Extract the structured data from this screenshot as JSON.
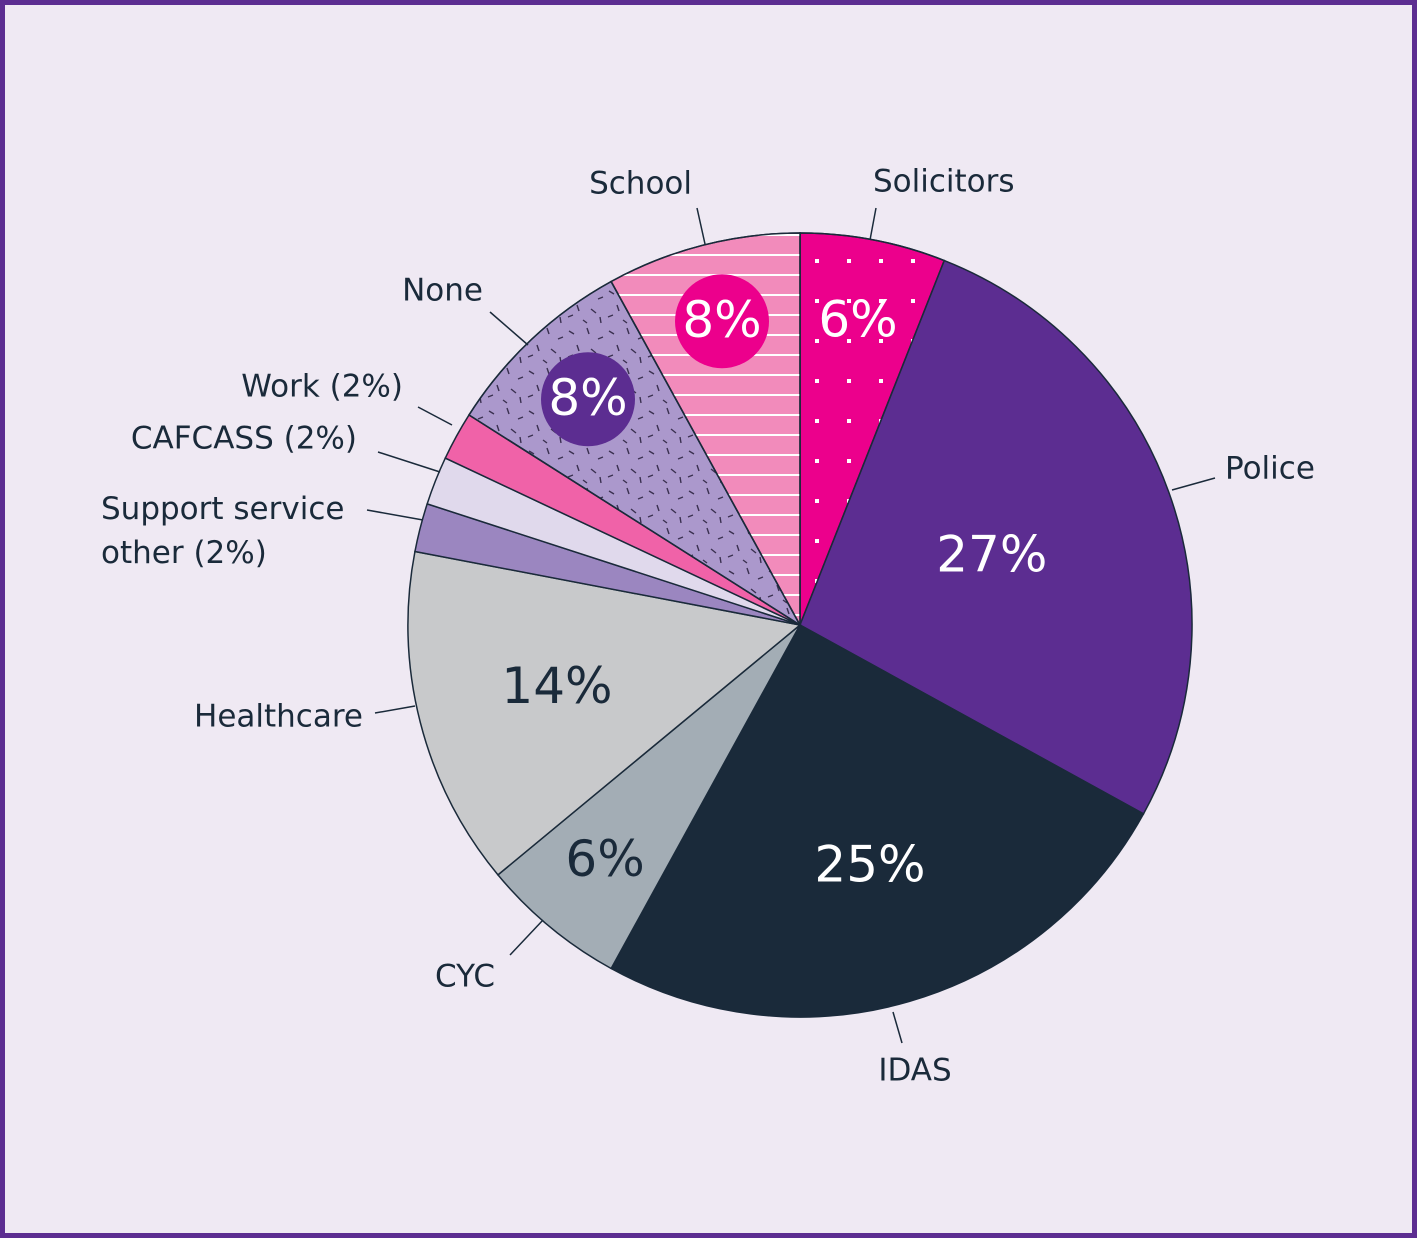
{
  "chart_data": {
    "type": "pie",
    "categories": [
      "Solicitors",
      "Police",
      "IDAS",
      "CYC",
      "Healthcare",
      "Support service other (2%)",
      "CAFCASS (2%)",
      "Work (2%)",
      "None",
      "School"
    ],
    "values": [
      6,
      27,
      25,
      6,
      14,
      2,
      2,
      2,
      8,
      8
    ],
    "value_labels": [
      "6%",
      "27%",
      "25%",
      "6%",
      "14%",
      null,
      null,
      null,
      "8%",
      "8%"
    ],
    "colors": [
      "#ec008c",
      "#5c2d91",
      "#1a2a3a",
      "#a3adb5",
      "#c8c9cb",
      "#9b86c0",
      "#e0d9ec",
      "#f062a8",
      "#ab98cc",
      "#f28bbb"
    ]
  }
}
